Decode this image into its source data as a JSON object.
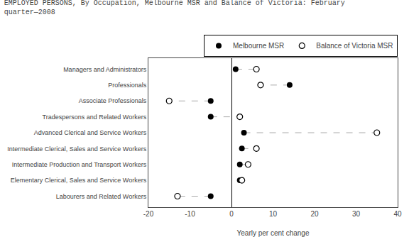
{
  "chart_data": {
    "type": "dumbbell",
    "title": "EMPLOYED PERSONS, By Occupation, Melbourne MSR and Balance of Victoria: February\nquarter—2008",
    "x_label": "Yearly per cent change",
    "categories": [
      "Managers and Administrators",
      "Professionals",
      "Associate Professionals",
      "Tradespersons and Related Workers",
      "Advanced Clerical and Service Workers",
      "Intermediate Clerical, Sales and Service Workers",
      "Intermediate Production and Transport Workers",
      "Elementary Clerical, Sales and Service Workers",
      "Labourers and Related Workers"
    ],
    "series": [
      {
        "name": "Melbourne MSR",
        "color": "#000000",
        "marker": "filled",
        "values": [
          1.0,
          14.0,
          -5.0,
          -5.0,
          3.0,
          2.5,
          2.0,
          2.0,
          -5.0
        ]
      },
      {
        "name": "Balance of Victoria MSR",
        "color": "#000000",
        "marker": "open",
        "values": [
          6.0,
          7.0,
          -15.0,
          2.0,
          35.0,
          6.0,
          4.0,
          2.5,
          -13.0
        ]
      }
    ],
    "color": "#aaaaaa",
    "line_style": "dashed",
    "orientation": "horizontal",
    "xlim": [
      -20,
      40
    ],
    "xticks": [
      -20,
      -10,
      0,
      10,
      20,
      30,
      40
    ],
    "grid": false,
    "legend": "upper right"
  }
}
